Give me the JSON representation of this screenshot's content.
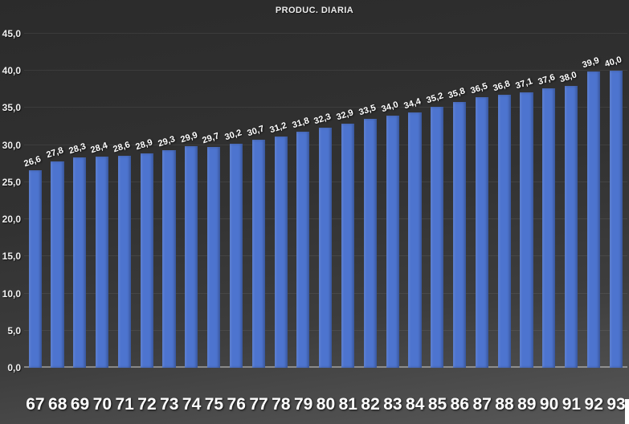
{
  "title": "PRODUC. DIARIA",
  "colors": {
    "bar": "#4d74cf",
    "background_dark": "#2b2b2b",
    "background_light": "#585858",
    "text": "#ffffff",
    "gridline": "rgba(255,255,255,0.07)"
  },
  "chart_data": {
    "type": "bar",
    "title": "PRODUC. DIARIA",
    "xlabel": "",
    "ylabel": "",
    "categories": [
      "67",
      "68",
      "69",
      "70",
      "71",
      "72",
      "73",
      "74",
      "75",
      "76",
      "77",
      "78",
      "79",
      "80",
      "81",
      "82",
      "83",
      "84",
      "85",
      "86",
      "87",
      "88",
      "89",
      "90",
      "91",
      "92",
      "93"
    ],
    "values": [
      26.6,
      27.8,
      28.3,
      28.4,
      28.6,
      28.9,
      29.3,
      29.9,
      29.7,
      30.2,
      30.7,
      31.2,
      31.8,
      32.3,
      32.9,
      33.5,
      34.0,
      34.4,
      35.2,
      35.8,
      36.5,
      36.8,
      37.1,
      37.6,
      38.0,
      39.9,
      40.0
    ],
    "value_labels": [
      "26,6",
      "27,8",
      "28,3",
      "28,4",
      "28,6",
      "28,9",
      "29,3",
      "29,9",
      "29,7",
      "30,2",
      "30,7",
      "31,2",
      "31,8",
      "32,3",
      "32,9",
      "33,5",
      "34,0",
      "34,4",
      "35,2",
      "35,8",
      "36,5",
      "36,8",
      "37,1",
      "37,6",
      "38,0",
      "39,9",
      "40,0"
    ],
    "ylim": [
      0,
      45
    ],
    "ytick_values": [
      0,
      5,
      10,
      15,
      20,
      25,
      30,
      35,
      40,
      45
    ],
    "ytick_labels": [
      "0,0",
      "5,0",
      "10,0",
      "15,0",
      "20,0",
      "25,0",
      "30,0",
      "35,0",
      "40,0",
      "45,0"
    ],
    "grid": true,
    "legend": false
  }
}
